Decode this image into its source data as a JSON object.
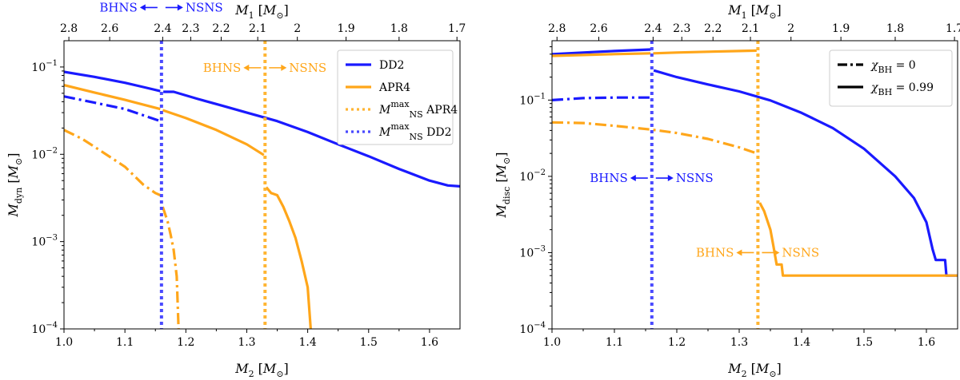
{
  "colors": {
    "dd2": "#1a1aff",
    "apr4": "#ffa61a",
    "dd2_vline": "#4a4aff",
    "apr4_vline": "#ffb533"
  },
  "chart_data": [
    {
      "type": "line",
      "panel": "left",
      "xlabel": "M_2 [M_⊙]",
      "ylabel": "M_dyn [M_⊙]",
      "top_xlabel": "M_1 [M_⊙]",
      "xlim": [
        1.0,
        1.65
      ],
      "ylim": [
        0.0001,
        0.2
      ],
      "yscale": "log",
      "xticks": [
        "1.0",
        "1.1",
        "1.2",
        "1.3",
        "1.4",
        "1.5",
        "1.6"
      ],
      "yticks": [
        "10^-4",
        "10^-3",
        "10^-2",
        "10^-1"
      ],
      "top_ticks": [
        {
          "m2": 1.008,
          "label": "2.8"
        },
        {
          "m2": 1.075,
          "label": "2.6"
        },
        {
          "m2": 1.162,
          "label": "2.4"
        },
        {
          "m2": 1.208,
          "label": "2.3"
        },
        {
          "m2": 1.258,
          "label": "2.2"
        },
        {
          "m2": 1.318,
          "label": "2.1"
        },
        {
          "m2": 1.383,
          "label": "2"
        },
        {
          "m2": 1.463,
          "label": "1.9"
        },
        {
          "m2": 1.55,
          "label": "1.8"
        },
        {
          "m2": 1.645,
          "label": "1.7"
        }
      ],
      "legend": {
        "position": "top-right",
        "entries": [
          {
            "label": "DD2",
            "color": "#1a1aff",
            "style": "solid"
          },
          {
            "label": "APR4",
            "color": "#ffa61a",
            "style": "solid"
          },
          {
            "label": "M_NS^max APR4",
            "color": "#ffb533",
            "style": "dotted"
          },
          {
            "label": "M_NS^max DD2",
            "color": "#4a4aff",
            "style": "dotted"
          }
        ]
      },
      "vlines": [
        {
          "x": 1.16,
          "color": "#4a4aff"
        },
        {
          "x": 1.33,
          "color": "#ffb533"
        }
      ],
      "annotations": [
        {
          "x": 1.16,
          "y": 0.48,
          "left": "BHNS",
          "right": "NSNS",
          "color": "#1a1aff"
        },
        {
          "x": 1.33,
          "y": 0.098,
          "left": "BHNS",
          "right": "NSNS",
          "color": "#ffa61a"
        }
      ],
      "series": [
        {
          "color": "#1a1aff",
          "style": "solid",
          "points": [
            [
              1.0,
              0.088
            ],
            [
              1.05,
              0.077
            ],
            [
              1.1,
              0.066
            ],
            [
              1.13,
              0.059
            ],
            [
              1.158,
              0.053
            ]
          ]
        },
        {
          "color": "#1a1aff",
          "style": "solid",
          "points": [
            [
              1.163,
              0.052
            ],
            [
              1.18,
              0.052
            ],
            [
              1.22,
              0.043
            ],
            [
              1.26,
              0.036
            ],
            [
              1.3,
              0.03
            ],
            [
              1.35,
              0.024
            ],
            [
              1.4,
              0.018
            ],
            [
              1.45,
              0.013
            ],
            [
              1.5,
              0.0095
            ],
            [
              1.55,
              0.0068
            ],
            [
              1.6,
              0.005
            ],
            [
              1.63,
              0.0044
            ],
            [
              1.65,
              0.0043
            ]
          ]
        },
        {
          "color": "#ffa61a",
          "style": "solid",
          "points": [
            [
              1.0,
              0.062
            ],
            [
              1.05,
              0.051
            ],
            [
              1.1,
              0.042
            ],
            [
              1.158,
              0.033
            ]
          ]
        },
        {
          "color": "#ffa61a",
          "style": "solid",
          "points": [
            [
              1.162,
              0.032
            ],
            [
              1.2,
              0.026
            ],
            [
              1.25,
              0.019
            ],
            [
              1.3,
              0.013
            ],
            [
              1.328,
              0.0098
            ]
          ]
        },
        {
          "color": "#ffa61a",
          "style": "solid",
          "points": [
            [
              1.332,
              0.0042
            ],
            [
              1.34,
              0.0036
            ],
            [
              1.345,
              0.0035
            ],
            [
              1.35,
              0.0034
            ],
            [
              1.36,
              0.0025
            ],
            [
              1.37,
              0.0017
            ],
            [
              1.38,
              0.0011
            ],
            [
              1.39,
              0.0006
            ],
            [
              1.4,
              0.0003
            ],
            [
              1.405,
              0.0001
            ]
          ]
        },
        {
          "color": "#1a1aff",
          "style": "dashdot",
          "points": [
            [
              1.0,
              0.046
            ],
            [
              1.05,
              0.039
            ],
            [
              1.1,
              0.033
            ],
            [
              1.13,
              0.028
            ],
            [
              1.158,
              0.024
            ]
          ]
        },
        {
          "color": "#ffa61a",
          "style": "dashdot",
          "points": [
            [
              1.0,
              0.019
            ],
            [
              1.03,
              0.015
            ],
            [
              1.06,
              0.011
            ],
            [
              1.1,
              0.0072
            ],
            [
              1.13,
              0.0045
            ],
            [
              1.15,
              0.0036
            ],
            [
              1.158,
              0.0034
            ]
          ]
        },
        {
          "color": "#ffa61a",
          "style": "dashdot",
          "points": [
            [
              1.162,
              0.0025
            ],
            [
              1.17,
              0.0017
            ],
            [
              1.175,
              0.0012
            ],
            [
              1.18,
              0.0008
            ],
            [
              1.185,
              0.0004
            ],
            [
              1.188,
              0.0001
            ]
          ]
        }
      ]
    },
    {
      "type": "line",
      "panel": "right",
      "xlabel": "M_2 [M_⊙]",
      "ylabel": "M_disc [M_⊙]",
      "top_xlabel": "M_1 [M_⊙]",
      "xlim": [
        1.0,
        1.65
      ],
      "ylim": [
        0.0001,
        0.6
      ],
      "yscale": "log",
      "xticks": [
        "1.0",
        "1.1",
        "1.2",
        "1.3",
        "1.4",
        "1.5",
        "1.6"
      ],
      "yticks": [
        "10^-4",
        "10^-3",
        "10^-2",
        "10^-1"
      ],
      "top_ticks": [
        {
          "m2": 1.008,
          "label": "2.8"
        },
        {
          "m2": 1.075,
          "label": "2.6"
        },
        {
          "m2": 1.162,
          "label": "2.4"
        },
        {
          "m2": 1.208,
          "label": "2.3"
        },
        {
          "m2": 1.258,
          "label": "2.2"
        },
        {
          "m2": 1.318,
          "label": "2.1"
        },
        {
          "m2": 1.383,
          "label": "2"
        },
        {
          "m2": 1.463,
          "label": "1.9"
        },
        {
          "m2": 1.55,
          "label": "1.8"
        },
        {
          "m2": 1.645,
          "label": "1.7"
        }
      ],
      "legend": {
        "position": "top-right",
        "entries": [
          {
            "label": "χ_BH = 0",
            "color": "#000000",
            "style": "dashdot"
          },
          {
            "label": "χ_BH = 0.99",
            "color": "#000000",
            "style": "solid"
          }
        ]
      },
      "vlines": [
        {
          "x": 1.16,
          "color": "#4a4aff"
        },
        {
          "x": 1.33,
          "color": "#ffb533"
        }
      ],
      "annotations": [
        {
          "x": 1.16,
          "y": 0.0095,
          "left": "BHNS",
          "right": "NSNS",
          "color": "#1a1aff"
        },
        {
          "x": 1.33,
          "y": 0.001,
          "left": "BHNS",
          "right": "NSNS",
          "color": "#ffa61a"
        }
      ],
      "series": [
        {
          "color": "#1a1aff",
          "style": "solid",
          "points": [
            [
              1.0,
              0.4
            ],
            [
              1.05,
              0.42
            ],
            [
              1.1,
              0.44
            ],
            [
              1.158,
              0.46
            ]
          ]
        },
        {
          "color": "#1a1aff",
          "style": "solid",
          "points": [
            [
              1.163,
              0.245
            ],
            [
              1.2,
              0.2
            ],
            [
              1.25,
              0.16
            ],
            [
              1.3,
              0.13
            ],
            [
              1.35,
              0.099
            ],
            [
              1.4,
              0.068
            ],
            [
              1.45,
              0.043
            ],
            [
              1.5,
              0.023
            ],
            [
              1.55,
              0.01
            ],
            [
              1.58,
              0.0052
            ],
            [
              1.6,
              0.0025
            ],
            [
              1.61,
              0.0011
            ],
            [
              1.615,
              0.0008
            ],
            [
              1.622,
              0.0008
            ],
            [
              1.625,
              0.0008
            ],
            [
              1.63,
              0.0008
            ],
            [
              1.632,
              0.0005
            ],
            [
              1.65,
              0.0005
            ]
          ]
        },
        {
          "color": "#ffa61a",
          "style": "solid",
          "points": [
            [
              1.0,
              0.38
            ],
            [
              1.05,
              0.39
            ],
            [
              1.1,
              0.4
            ],
            [
              1.158,
              0.41
            ]
          ]
        },
        {
          "color": "#ffa61a",
          "style": "solid",
          "points": [
            [
              1.162,
              0.41
            ],
            [
              1.2,
              0.42
            ],
            [
              1.25,
              0.43
            ],
            [
              1.3,
              0.44
            ],
            [
              1.328,
              0.445
            ]
          ]
        },
        {
          "color": "#ffa61a",
          "style": "solid",
          "points": [
            [
              1.333,
              0.0045
            ],
            [
              1.34,
              0.0035
            ],
            [
              1.35,
              0.002
            ],
            [
              1.355,
              0.0012
            ],
            [
              1.36,
              0.0007
            ],
            [
              1.365,
              0.0007
            ],
            [
              1.368,
              0.0007
            ],
            [
              1.37,
              0.0005
            ],
            [
              1.45,
              0.0005
            ],
            [
              1.55,
              0.0005
            ],
            [
              1.65,
              0.0005
            ]
          ]
        },
        {
          "color": "#1a1aff",
          "style": "dashdot",
          "points": [
            [
              1.0,
              0.1
            ],
            [
              1.05,
              0.106
            ],
            [
              1.1,
              0.108
            ],
            [
              1.158,
              0.108
            ]
          ]
        },
        {
          "color": "#ffa61a",
          "style": "dashdot",
          "points": [
            [
              1.0,
              0.051
            ],
            [
              1.05,
              0.05
            ],
            [
              1.1,
              0.046
            ],
            [
              1.16,
              0.041
            ],
            [
              1.2,
              0.037
            ],
            [
              1.25,
              0.031
            ],
            [
              1.3,
              0.024
            ],
            [
              1.328,
              0.02
            ]
          ]
        }
      ]
    }
  ]
}
